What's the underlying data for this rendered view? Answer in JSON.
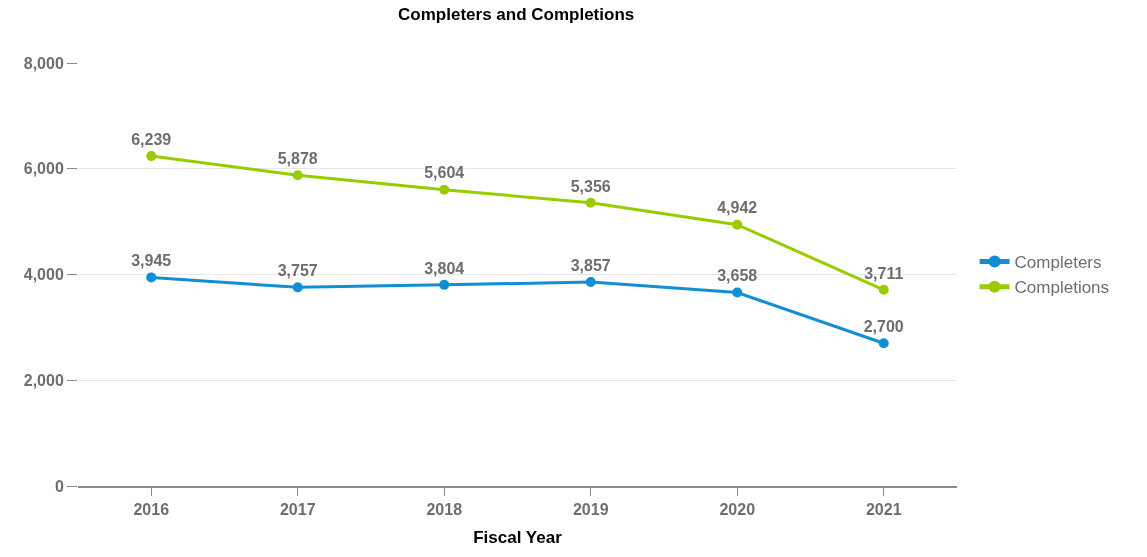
{
  "chart_data": {
    "type": "line",
    "title": "Completers and Completions",
    "xlabel": "Fiscal Year",
    "categories": [
      "2016",
      "2017",
      "2018",
      "2019",
      "2020",
      "2021"
    ],
    "series": [
      {
        "name": "Completers",
        "color": "#128fd4",
        "values": [
          3945,
          3757,
          3804,
          3857,
          3658,
          2700
        ],
        "value_labels": [
          "3,945",
          "3,757",
          "3,804",
          "3,857",
          "3,658",
          "2,700"
        ]
      },
      {
        "name": "Completions",
        "color": "#99cc00",
        "values": [
          6239,
          5878,
          5604,
          5356,
          4942,
          3711
        ],
        "value_labels": [
          "6,239",
          "5,878",
          "5,604",
          "5,356",
          "4,942",
          "3,711"
        ]
      }
    ],
    "ylim": [
      0,
      8000
    ],
    "yticks": [
      {
        "value": 0,
        "label": "0"
      },
      {
        "value": 2000,
        "label": "2,000"
      },
      {
        "value": 4000,
        "label": "4,000"
      },
      {
        "value": 6000,
        "label": "6,000"
      },
      {
        "value": 8000,
        "label": "8,000"
      }
    ],
    "grid": "y",
    "legend": "right",
    "marker": "circle",
    "line_style": "solid"
  }
}
